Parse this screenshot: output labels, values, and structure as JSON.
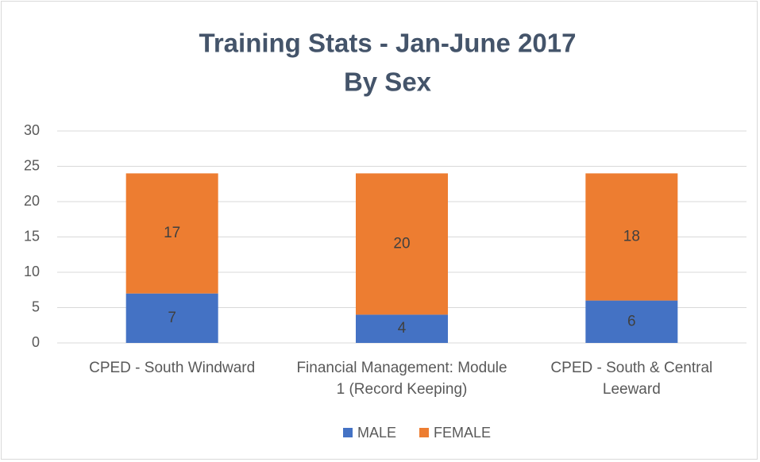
{
  "chart_data": {
    "type": "stacked_bar",
    "title": [
      "Training Stats - Jan-June 2017",
      "By Sex"
    ],
    "categories": [
      "CPED - South Windward",
      "Financial Management: Module 1 (Record Keeping)",
      "CPED - South & Central Leeward"
    ],
    "series": [
      {
        "name": "MALE",
        "color": "#4472c4",
        "values": [
          7,
          4,
          6
        ]
      },
      {
        "name": "FEMALE",
        "color": "#ed7d31",
        "values": [
          17,
          20,
          18
        ]
      }
    ],
    "ylim": [
      0,
      30
    ],
    "yticks": [
      0,
      5,
      10,
      15,
      20,
      25,
      30
    ],
    "grid": true,
    "legend": "bottom"
  }
}
